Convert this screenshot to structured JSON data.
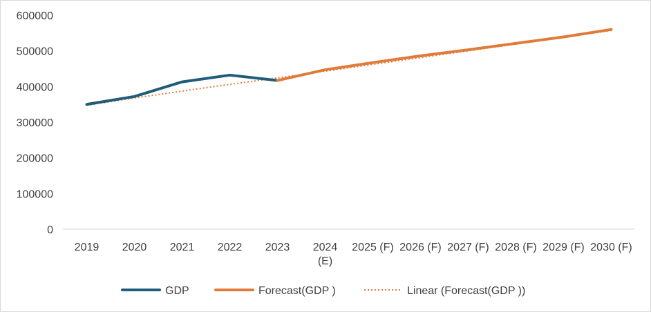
{
  "chart_data": {
    "type": "line",
    "categories": [
      "2019",
      "2020",
      "2021",
      "2022",
      "2023",
      "2024 (E)",
      "2025 (F)",
      "2026 (F)",
      "2027 (F)",
      "2028 (F)",
      "2029 (F)",
      "2030 (F)"
    ],
    "ylim": [
      0,
      600000
    ],
    "yticks": [
      "0",
      "100000",
      "200000",
      "300000",
      "400000",
      "500000",
      "600000"
    ],
    "ytick_values": [
      0,
      100000,
      200000,
      300000,
      400000,
      500000,
      600000
    ],
    "grid": false,
    "legend_position": "bottom",
    "series": [
      {
        "name": "GDP",
        "color": "#1f5c7a",
        "style": "solid",
        "values": [
          350000,
          372000,
          413000,
          432000,
          417000,
          null,
          null,
          null,
          null,
          null,
          null,
          null
        ]
      },
      {
        "name": "Forecast(GDP )",
        "color": "#e07b39",
        "style": "solid",
        "values": [
          null,
          null,
          null,
          null,
          417000,
          447000,
          467000,
          486000,
          503000,
          521000,
          539000,
          560000
        ]
      },
      {
        "name": "Linear (Forecast(GDP ))",
        "color": "#e07b39",
        "style": "dotted",
        "values": [
          347000,
          368000,
          387000,
          406000,
          424000,
          443000,
          462000,
          481000,
          500000,
          519000,
          538000,
          557000
        ]
      }
    ]
  }
}
